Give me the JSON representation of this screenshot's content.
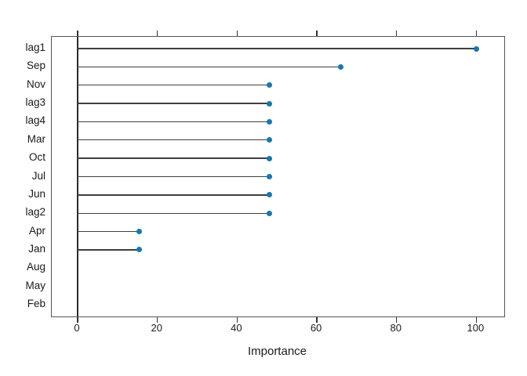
{
  "chart_data": {
    "type": "lollipop",
    "orientation": "horizontal",
    "xlabel": "Importance",
    "categories": [
      "lag1",
      "Sep",
      "Nov",
      "lag3",
      "lag4",
      "Mar",
      "Oct",
      "Jul",
      "Jun",
      "lag2",
      "Apr",
      "Jan",
      "Aug",
      "May",
      "Feb"
    ],
    "values": [
      100,
      66,
      48,
      48,
      48,
      48,
      48,
      48,
      48,
      48,
      15.5,
      15.5,
      0,
      0,
      0
    ],
    "x_ticks": [
      0,
      20,
      40,
      60,
      80,
      100
    ],
    "xlim": [
      -6.5,
      107
    ],
    "grid": false,
    "legend": "none",
    "axis_ticks_position": "top-and-bottom",
    "colors": {
      "dot": "#1478b4",
      "stem": "#3f3f3f",
      "frame": "#555555",
      "zero_line": "#2b2b2b",
      "text": "#1a1a1a",
      "background": "#ffffff"
    }
  }
}
